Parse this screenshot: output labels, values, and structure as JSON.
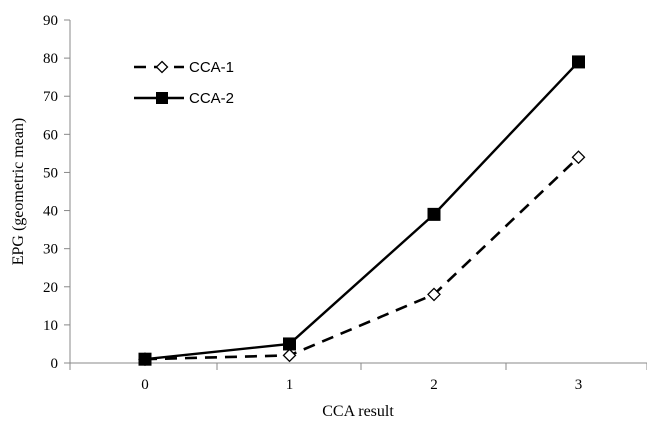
{
  "chart_data": {
    "type": "line",
    "x": [
      0,
      1,
      2,
      3
    ],
    "xlabel": "CCA result",
    "ylabel": "EPG (geometric mean)",
    "ylim": [
      0,
      90
    ],
    "yticks": [
      0,
      10,
      20,
      30,
      40,
      50,
      60,
      70,
      80,
      90
    ],
    "xticks": [
      "0",
      "1",
      "2",
      "3"
    ],
    "grid": false,
    "legend_position": "top-left",
    "series": [
      {
        "name": "CCA-1",
        "values": [
          1,
          2,
          18,
          54
        ],
        "line": "dashed",
        "marker": "open-diamond",
        "color": "#000000"
      },
      {
        "name": "CCA-2",
        "values": [
          1,
          5,
          39,
          79
        ],
        "line": "solid",
        "marker": "filled-square",
        "color": "#000000"
      }
    ]
  }
}
